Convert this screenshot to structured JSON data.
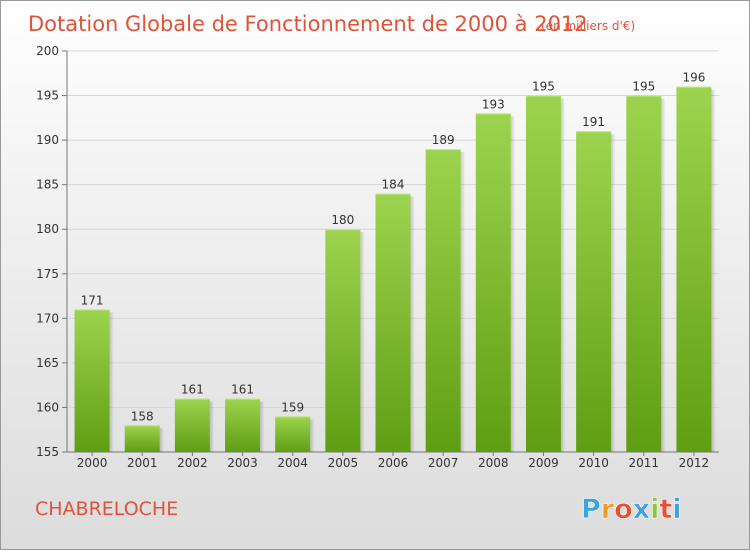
{
  "title": "Dotation Globale de Fonctionnement de 2000 à 2012",
  "unit": "(en milliers d'€)",
  "commune": "CHABRELOCHE",
  "logo": {
    "letters": [
      "P",
      "r",
      "o",
      "x",
      "i",
      "t",
      "i"
    ],
    "colors": [
      "#3fa2dc",
      "#f09a1f",
      "#e84f2f",
      "#3fa2dc",
      "#8cc63f",
      "#e84f2f",
      "#3fa2dc"
    ]
  },
  "colors": {
    "bar_top": "#9dd44f",
    "bar_bottom": "#5f9e12",
    "title": "#e0533a"
  },
  "chart_data": {
    "type": "bar",
    "title": "Dotation Globale de Fonctionnement de 2000 à 2012",
    "subtitle": "(en milliers d'€)",
    "categories": [
      "2000",
      "2001",
      "2002",
      "2003",
      "2004",
      "2005",
      "2006",
      "2007",
      "2008",
      "2009",
      "2010",
      "2011",
      "2012"
    ],
    "values": [
      171,
      158,
      161,
      161,
      159,
      180,
      184,
      189,
      193,
      195,
      191,
      195,
      196
    ],
    "ylim": [
      155,
      200
    ],
    "yticks": [
      155,
      160,
      165,
      170,
      175,
      180,
      185,
      190,
      195,
      200
    ],
    "grid": true,
    "xlabel": "",
    "ylabel": ""
  }
}
